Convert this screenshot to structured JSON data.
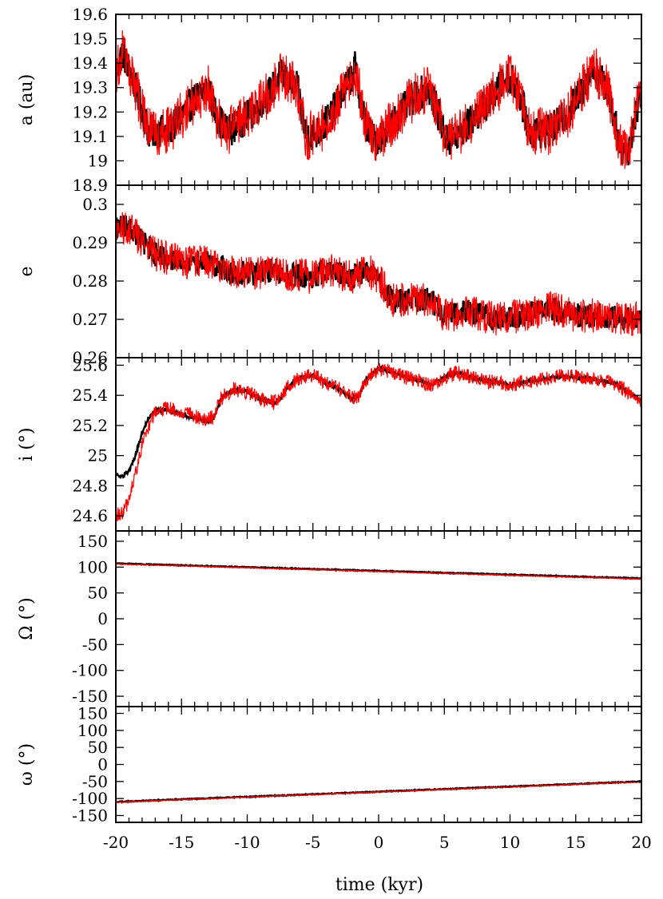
{
  "colors": {
    "series_black": "#000000",
    "series_red": "#ff0000",
    "axes": "#000000",
    "background": "#ffffff"
  },
  "xaxis": {
    "label": "time (kyr)",
    "range": [
      -20,
      20
    ],
    "ticks": [
      "-20",
      "-15",
      "-10",
      "-5",
      "0",
      "5",
      "10",
      "15",
      "20"
    ]
  },
  "chart_data": [
    {
      "type": "line",
      "ylabel": "a (au)",
      "xlabel": "time (kyr)",
      "xlim": [
        -20,
        20
      ],
      "ylim": [
        18.9,
        19.6
      ],
      "yticks": [
        "18.9",
        "19",
        "19.1",
        "19.2",
        "19.3",
        "19.4",
        "19.5",
        "19.6"
      ],
      "noise": [
        0.07,
        0.1
      ],
      "series": [
        {
          "color": "#000000",
          "x": [
            -20,
            -19.5,
            -18.5,
            -17.5,
            -16,
            -14,
            -13,
            -12.3,
            -11.5,
            -9.5,
            -8,
            -7.5,
            -6.2,
            -5.5,
            -4.5,
            -3.5,
            -2,
            -1.8,
            -1,
            -0.3,
            1,
            2.5,
            3.8,
            4.5,
            5.2,
            6,
            8.5,
            9.8,
            10.6,
            11.5,
            13,
            14.5,
            16.4,
            17.5,
            18.4,
            19,
            20
          ],
          "y": [
            19.35,
            19.45,
            19.3,
            19.12,
            19.12,
            19.25,
            19.3,
            19.18,
            19.12,
            19.2,
            19.3,
            19.35,
            19.3,
            19.1,
            19.12,
            19.2,
            19.35,
            19.38,
            19.15,
            19.08,
            19.15,
            19.25,
            19.3,
            19.2,
            19.08,
            19.1,
            19.25,
            19.35,
            19.3,
            19.12,
            19.12,
            19.2,
            19.38,
            19.28,
            19.05,
            19.05,
            19.3
          ]
        },
        {
          "color": "#ff0000",
          "x": [
            -20,
            -19.5,
            -18.5,
            -17.5,
            -16,
            -14,
            -13,
            -12.3,
            -11.5,
            -9.5,
            -8,
            -7.5,
            -6.2,
            -5.5,
            -4.5,
            -3.5,
            -2,
            -1.8,
            -1,
            -0.3,
            1,
            2.5,
            3.8,
            4.5,
            5.2,
            6,
            8.5,
            9.8,
            10.6,
            11.5,
            13,
            14.5,
            16.4,
            17.5,
            18.4,
            19,
            20
          ],
          "y": [
            19.35,
            19.45,
            19.3,
            19.12,
            19.12,
            19.25,
            19.3,
            19.18,
            19.12,
            19.2,
            19.3,
            19.35,
            19.3,
            19.1,
            19.12,
            19.2,
            19.35,
            19.38,
            19.15,
            19.08,
            19.15,
            19.25,
            19.3,
            19.2,
            19.08,
            19.1,
            19.25,
            19.35,
            19.3,
            19.12,
            19.12,
            19.2,
            19.38,
            19.28,
            19.05,
            19.05,
            19.3
          ]
        }
      ]
    },
    {
      "type": "line",
      "ylabel": "e",
      "xlabel": "time (kyr)",
      "xlim": [
        -20,
        20
      ],
      "ylim": [
        0.26,
        0.305
      ],
      "yticks": [
        "0.26",
        "0.27",
        "0.28",
        "0.29",
        "0.3"
      ],
      "noise": [
        0.0032,
        0.0045
      ],
      "series": [
        {
          "color": "#000000",
          "x": [
            -20,
            -19,
            -17,
            -15,
            -13,
            -11,
            -9,
            -8,
            -7,
            -5,
            -4,
            -3,
            -2,
            -1,
            0,
            1,
            3,
            4,
            5,
            7,
            9,
            11,
            13,
            15,
            17,
            19,
            20
          ],
          "y": [
            0.294,
            0.294,
            0.287,
            0.285,
            0.285,
            0.282,
            0.282,
            0.283,
            0.282,
            0.281,
            0.283,
            0.282,
            0.281,
            0.283,
            0.281,
            0.275,
            0.275,
            0.275,
            0.271,
            0.272,
            0.27,
            0.271,
            0.273,
            0.271,
            0.271,
            0.27,
            0.27
          ]
        },
        {
          "color": "#ff0000",
          "x": [
            -20,
            -19,
            -17,
            -15,
            -13,
            -11,
            -9,
            -8,
            -7,
            -5,
            -4,
            -3,
            -2,
            -1,
            0,
            1,
            3,
            4,
            5,
            7,
            9,
            11,
            13,
            15,
            17,
            19,
            20
          ],
          "y": [
            0.293,
            0.294,
            0.287,
            0.285,
            0.285,
            0.282,
            0.282,
            0.283,
            0.282,
            0.281,
            0.283,
            0.282,
            0.281,
            0.283,
            0.281,
            0.275,
            0.275,
            0.275,
            0.271,
            0.272,
            0.27,
            0.271,
            0.273,
            0.271,
            0.271,
            0.27,
            0.27
          ]
        }
      ]
    },
    {
      "type": "line",
      "ylabel": "i (°)",
      "xlabel": "time (kyr)",
      "xlim": [
        -20,
        20
      ],
      "ylim": [
        24.5,
        25.65
      ],
      "yticks": [
        "24.6",
        "24.8",
        "25",
        "25.2",
        "25.4",
        "25.6"
      ],
      "noise": [
        0.012,
        0.05
      ],
      "series": [
        {
          "color": "#000000",
          "x": [
            -20,
            -19.5,
            -19,
            -18.5,
            -18,
            -17.5,
            -17,
            -16,
            -15,
            -14,
            -13,
            -12.5,
            -12,
            -11,
            -10,
            -9,
            -8,
            -7.5,
            -7,
            -6,
            -5,
            -4,
            -3,
            -2,
            -1.5,
            -1,
            0,
            1,
            2,
            3,
            4,
            5,
            6,
            7,
            8,
            10,
            12,
            14,
            16,
            18,
            20
          ],
          "y": [
            24.88,
            24.86,
            24.9,
            25,
            25.15,
            25.25,
            25.3,
            25.3,
            25.27,
            25.25,
            25.23,
            25.25,
            25.38,
            25.44,
            25.42,
            25.38,
            25.35,
            25.37,
            25.45,
            25.52,
            25.53,
            25.48,
            25.44,
            25.38,
            25.4,
            25.5,
            25.58,
            25.56,
            25.52,
            25.5,
            25.47,
            25.52,
            25.55,
            25.52,
            25.5,
            25.47,
            25.5,
            25.53,
            25.51,
            25.48,
            25.36
          ]
        },
        {
          "color": "#ff0000",
          "x": [
            -20,
            -19.5,
            -19,
            -18.5,
            -18,
            -17.5,
            -17,
            -16,
            -15,
            -14,
            -13,
            -12.5,
            -12,
            -11,
            -10,
            -9,
            -8,
            -7.5,
            -7,
            -6,
            -5,
            -4,
            -3,
            -2,
            -1.5,
            -1,
            0,
            1,
            2,
            3,
            4,
            5,
            6,
            7,
            8,
            10,
            12,
            14,
            16,
            18,
            20
          ],
          "y": [
            24.6,
            24.62,
            24.7,
            24.88,
            25.08,
            25.2,
            25.3,
            25.32,
            25.29,
            25.26,
            25.24,
            25.26,
            25.38,
            25.44,
            25.42,
            25.38,
            25.35,
            25.37,
            25.45,
            25.52,
            25.53,
            25.48,
            25.44,
            25.38,
            25.4,
            25.5,
            25.58,
            25.56,
            25.52,
            25.5,
            25.47,
            25.52,
            25.55,
            25.52,
            25.5,
            25.47,
            25.5,
            25.53,
            25.51,
            25.48,
            25.36
          ]
        }
      ]
    },
    {
      "type": "line",
      "ylabel": "Ω (°)",
      "xlabel": "time (kyr)",
      "xlim": [
        -20,
        20
      ],
      "ylim": [
        -170,
        170
      ],
      "yticks": [
        "-150",
        "-100",
        "-50",
        "0",
        "50",
        "100",
        "150"
      ],
      "noise": [
        0.8,
        0.8
      ],
      "series": [
        {
          "color": "#000000",
          "x": [
            -20,
            20
          ],
          "y": [
            107,
            78
          ]
        },
        {
          "color": "#ff0000",
          "x": [
            -20,
            20
          ],
          "y": [
            106,
            77
          ]
        }
      ]
    },
    {
      "type": "line",
      "ylabel": "ω (°)",
      "xlabel": "time (kyr)",
      "xlim": [
        -20,
        20
      ],
      "ylim": [
        -170,
        170
      ],
      "yticks": [
        "-150",
        "-100",
        "-50",
        "0",
        "50",
        "100",
        "150"
      ],
      "noise": [
        1.2,
        1.2
      ],
      "series": [
        {
          "color": "#000000",
          "x": [
            -20,
            20
          ],
          "y": [
            -110,
            -50
          ]
        },
        {
          "color": "#ff0000",
          "x": [
            -20,
            20
          ],
          "y": [
            -111,
            -51
          ]
        }
      ]
    }
  ]
}
